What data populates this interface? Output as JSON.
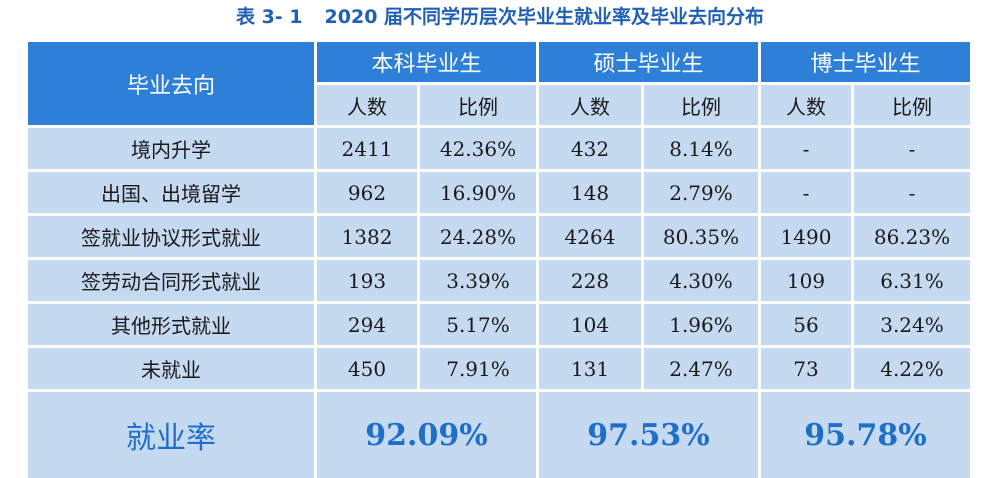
{
  "caption": {
    "number": "表 3- 1",
    "title": "2020 届不同学历层次毕业生就业率及毕业去向分布"
  },
  "header": {
    "destination": "毕业去向",
    "groups": [
      "本科毕业生",
      "硕士毕业生",
      "博士毕业生"
    ],
    "sub": {
      "count": "人数",
      "ratio": "比例"
    }
  },
  "rows": [
    {
      "label": "境内升学",
      "values": [
        "2411",
        "42.36%",
        "432",
        "8.14%",
        "-",
        "-"
      ]
    },
    {
      "label": "出国、出境留学",
      "values": [
        "962",
        "16.90%",
        "148",
        "2.79%",
        "-",
        "-"
      ]
    },
    {
      "label": "签就业协议形式就业",
      "values": [
        "1382",
        "24.28%",
        "4264",
        "80.35%",
        "1490",
        "86.23%"
      ]
    },
    {
      "label": "签劳动合同形式就业",
      "values": [
        "193",
        "3.39%",
        "228",
        "4.30%",
        "109",
        "6.31%"
      ]
    },
    {
      "label": "其他形式就业",
      "values": [
        "294",
        "5.17%",
        "104",
        "1.96%",
        "56",
        "3.24%"
      ]
    },
    {
      "label": "未就业",
      "values": [
        "450",
        "7.91%",
        "131",
        "2.47%",
        "73",
        "4.22%"
      ]
    }
  ],
  "employment_rate": {
    "label": "就业率",
    "values": [
      "92.09%",
      "97.53%",
      "95.78%"
    ]
  }
}
